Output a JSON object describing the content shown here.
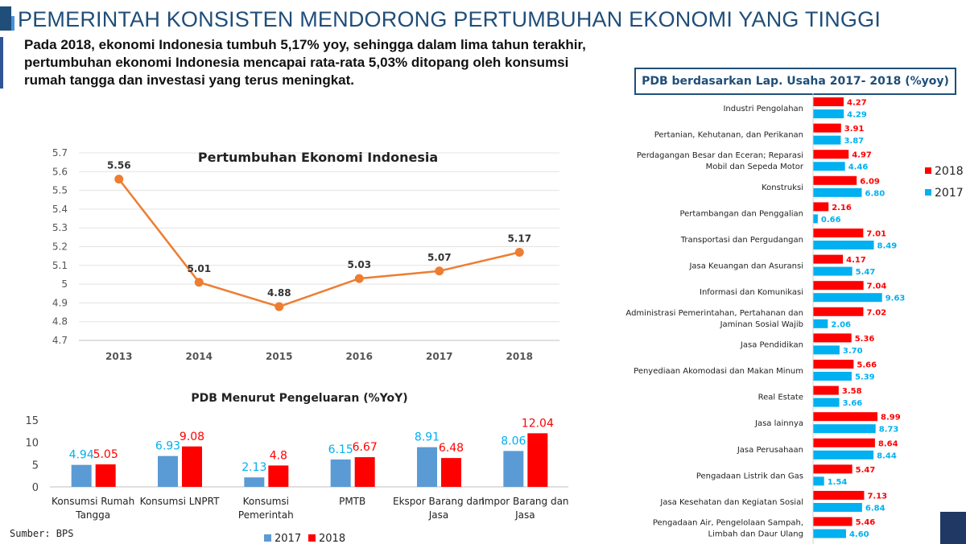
{
  "header": {
    "title": "PEMERINTAH KONSISTEN MENDORONG PERTUMBUHAN EKONOMI YANG TINGGI",
    "intro_lines": [
      "Pada 2018, ekonomi Indonesia tumbuh 5,17% yoy, sehingga dalam lima tahun terakhir,",
      "pertumbuhan ekonomi Indonesia mencapai rata-rata 5,03% ditopang oleh konsumsi",
      "rumah tangga dan investasi yang terus meningkat."
    ]
  },
  "colors": {
    "title": "#1f4e79",
    "line": "#ed7d31",
    "bar2017_expenditure": "#5b9bd5",
    "bar2018": "#ff0000",
    "bar2017_sector": "#00b0f0"
  },
  "source": "Sumber: BPS",
  "chart_data": [
    {
      "type": "line",
      "title": "Pertumbuhan Ekonomi Indonesia",
      "x": [
        "2013",
        "2014",
        "2015",
        "2016",
        "2017",
        "2018"
      ],
      "values": [
        5.56,
        5.01,
        4.88,
        5.03,
        5.07,
        5.17
      ],
      "data_labels": [
        "5.56",
        "5.01",
        "4.88",
        "5.03",
        "5.07",
        "5.17"
      ],
      "ylim": [
        4.7,
        5.7
      ],
      "yticks": [
        "5.7",
        "5.6",
        "5.5",
        "5.4",
        "5.3",
        "5.2",
        "5.1",
        "5",
        "4.9",
        "4.8",
        "4.7"
      ],
      "yticks_values": [
        5.7,
        5.6,
        5.5,
        5.4,
        5.3,
        5.2,
        5.1,
        5.0,
        4.9,
        4.8,
        4.7
      ],
      "grid": true
    },
    {
      "type": "bar",
      "title": "PDB Menurut Pengeluaran (%YoY)",
      "categories": [
        [
          "Konsumsi Rumah",
          "Tangga"
        ],
        [
          "Konsumsi LNPRT"
        ],
        [
          "Konsumsi",
          "Pemerintah"
        ],
        [
          "PMTB"
        ],
        [
          "Ekspor Barang dan",
          "Jasa"
        ],
        [
          "Impor Barang dan",
          "Jasa"
        ]
      ],
      "series": [
        {
          "name": "2017",
          "values": [
            4.94,
            6.93,
            2.13,
            6.15,
            8.91,
            8.06
          ],
          "labels": [
            "4.94",
            "6.93",
            "2.13",
            "6.15",
            "8.91",
            "8.06"
          ]
        },
        {
          "name": "2018",
          "values": [
            5.05,
            9.08,
            4.8,
            6.67,
            6.48,
            12.04
          ],
          "labels": [
            "5.05",
            "9.08",
            "4.8",
            "6.67",
            "6.48",
            "12.04"
          ]
        }
      ],
      "ylim": [
        0,
        15
      ],
      "yticks": [
        "15",
        "10",
        "5",
        "0"
      ],
      "yticks_values": [
        15,
        10,
        5,
        0
      ],
      "legend": "bottom"
    },
    {
      "type": "bar",
      "orientation": "horizontal",
      "title": "PDB berdasarkan Lap. Usaha 2017- 2018 (%yoy)",
      "categories": [
        [
          "Industri Pengolahan"
        ],
        [
          "Pertanian, Kehutanan, dan Perikanan"
        ],
        [
          "Perdagangan Besar dan Eceran; Reparasi",
          "Mobil dan Sepeda Motor"
        ],
        [
          "Konstruksi"
        ],
        [
          "Pertambangan dan Penggalian"
        ],
        [
          "Transportasi dan Pergudangan"
        ],
        [
          "Jasa Keuangan dan Asuransi"
        ],
        [
          "Informasi dan Komunikasi"
        ],
        [
          "Administrasi Pemerintahan, Pertahanan dan",
          "Jaminan Sosial Wajib"
        ],
        [
          "Jasa Pendidikan"
        ],
        [
          "Penyediaan Akomodasi dan Makan Minum"
        ],
        [
          "Real Estate"
        ],
        [
          "Jasa lainnya"
        ],
        [
          "Jasa Perusahaan"
        ],
        [
          "Pengadaan Listrik dan Gas"
        ],
        [
          "Jasa Kesehatan dan Kegiatan Sosial"
        ],
        [
          "Pengadaan Air, Pengelolaan Sampah,",
          "Limbah dan Daur Ulang"
        ]
      ],
      "series": [
        {
          "name": "2018",
          "values": [
            4.27,
            3.91,
            4.97,
            6.09,
            2.16,
            7.01,
            4.17,
            7.04,
            7.02,
            5.36,
            5.66,
            3.58,
            8.99,
            8.64,
            5.47,
            7.13,
            5.46
          ],
          "labels": [
            "4.27",
            "3.91",
            "4.97",
            "6.09",
            "2.16",
            "7.01",
            "4.17",
            "7.04",
            "7.02",
            "5.36",
            "5.66",
            "3.58",
            "8.99",
            "8.64",
            "5.47",
            "7.13",
            "5.46"
          ]
        },
        {
          "name": "2017",
          "values": [
            4.29,
            3.87,
            4.46,
            6.8,
            0.66,
            8.49,
            5.47,
            9.63,
            2.06,
            3.7,
            5.39,
            3.66,
            8.73,
            8.44,
            1.54,
            6.84,
            4.6
          ],
          "labels": [
            "4.29",
            "3.87",
            "4.46",
            "6.80",
            "0.66",
            "8.49",
            "5.47",
            "9.63",
            "2.06",
            "3.70",
            "5.39",
            "3.66",
            "8.73",
            "8.44",
            "1.54",
            "6.84",
            "4.60"
          ]
        }
      ],
      "legend": "right"
    }
  ]
}
